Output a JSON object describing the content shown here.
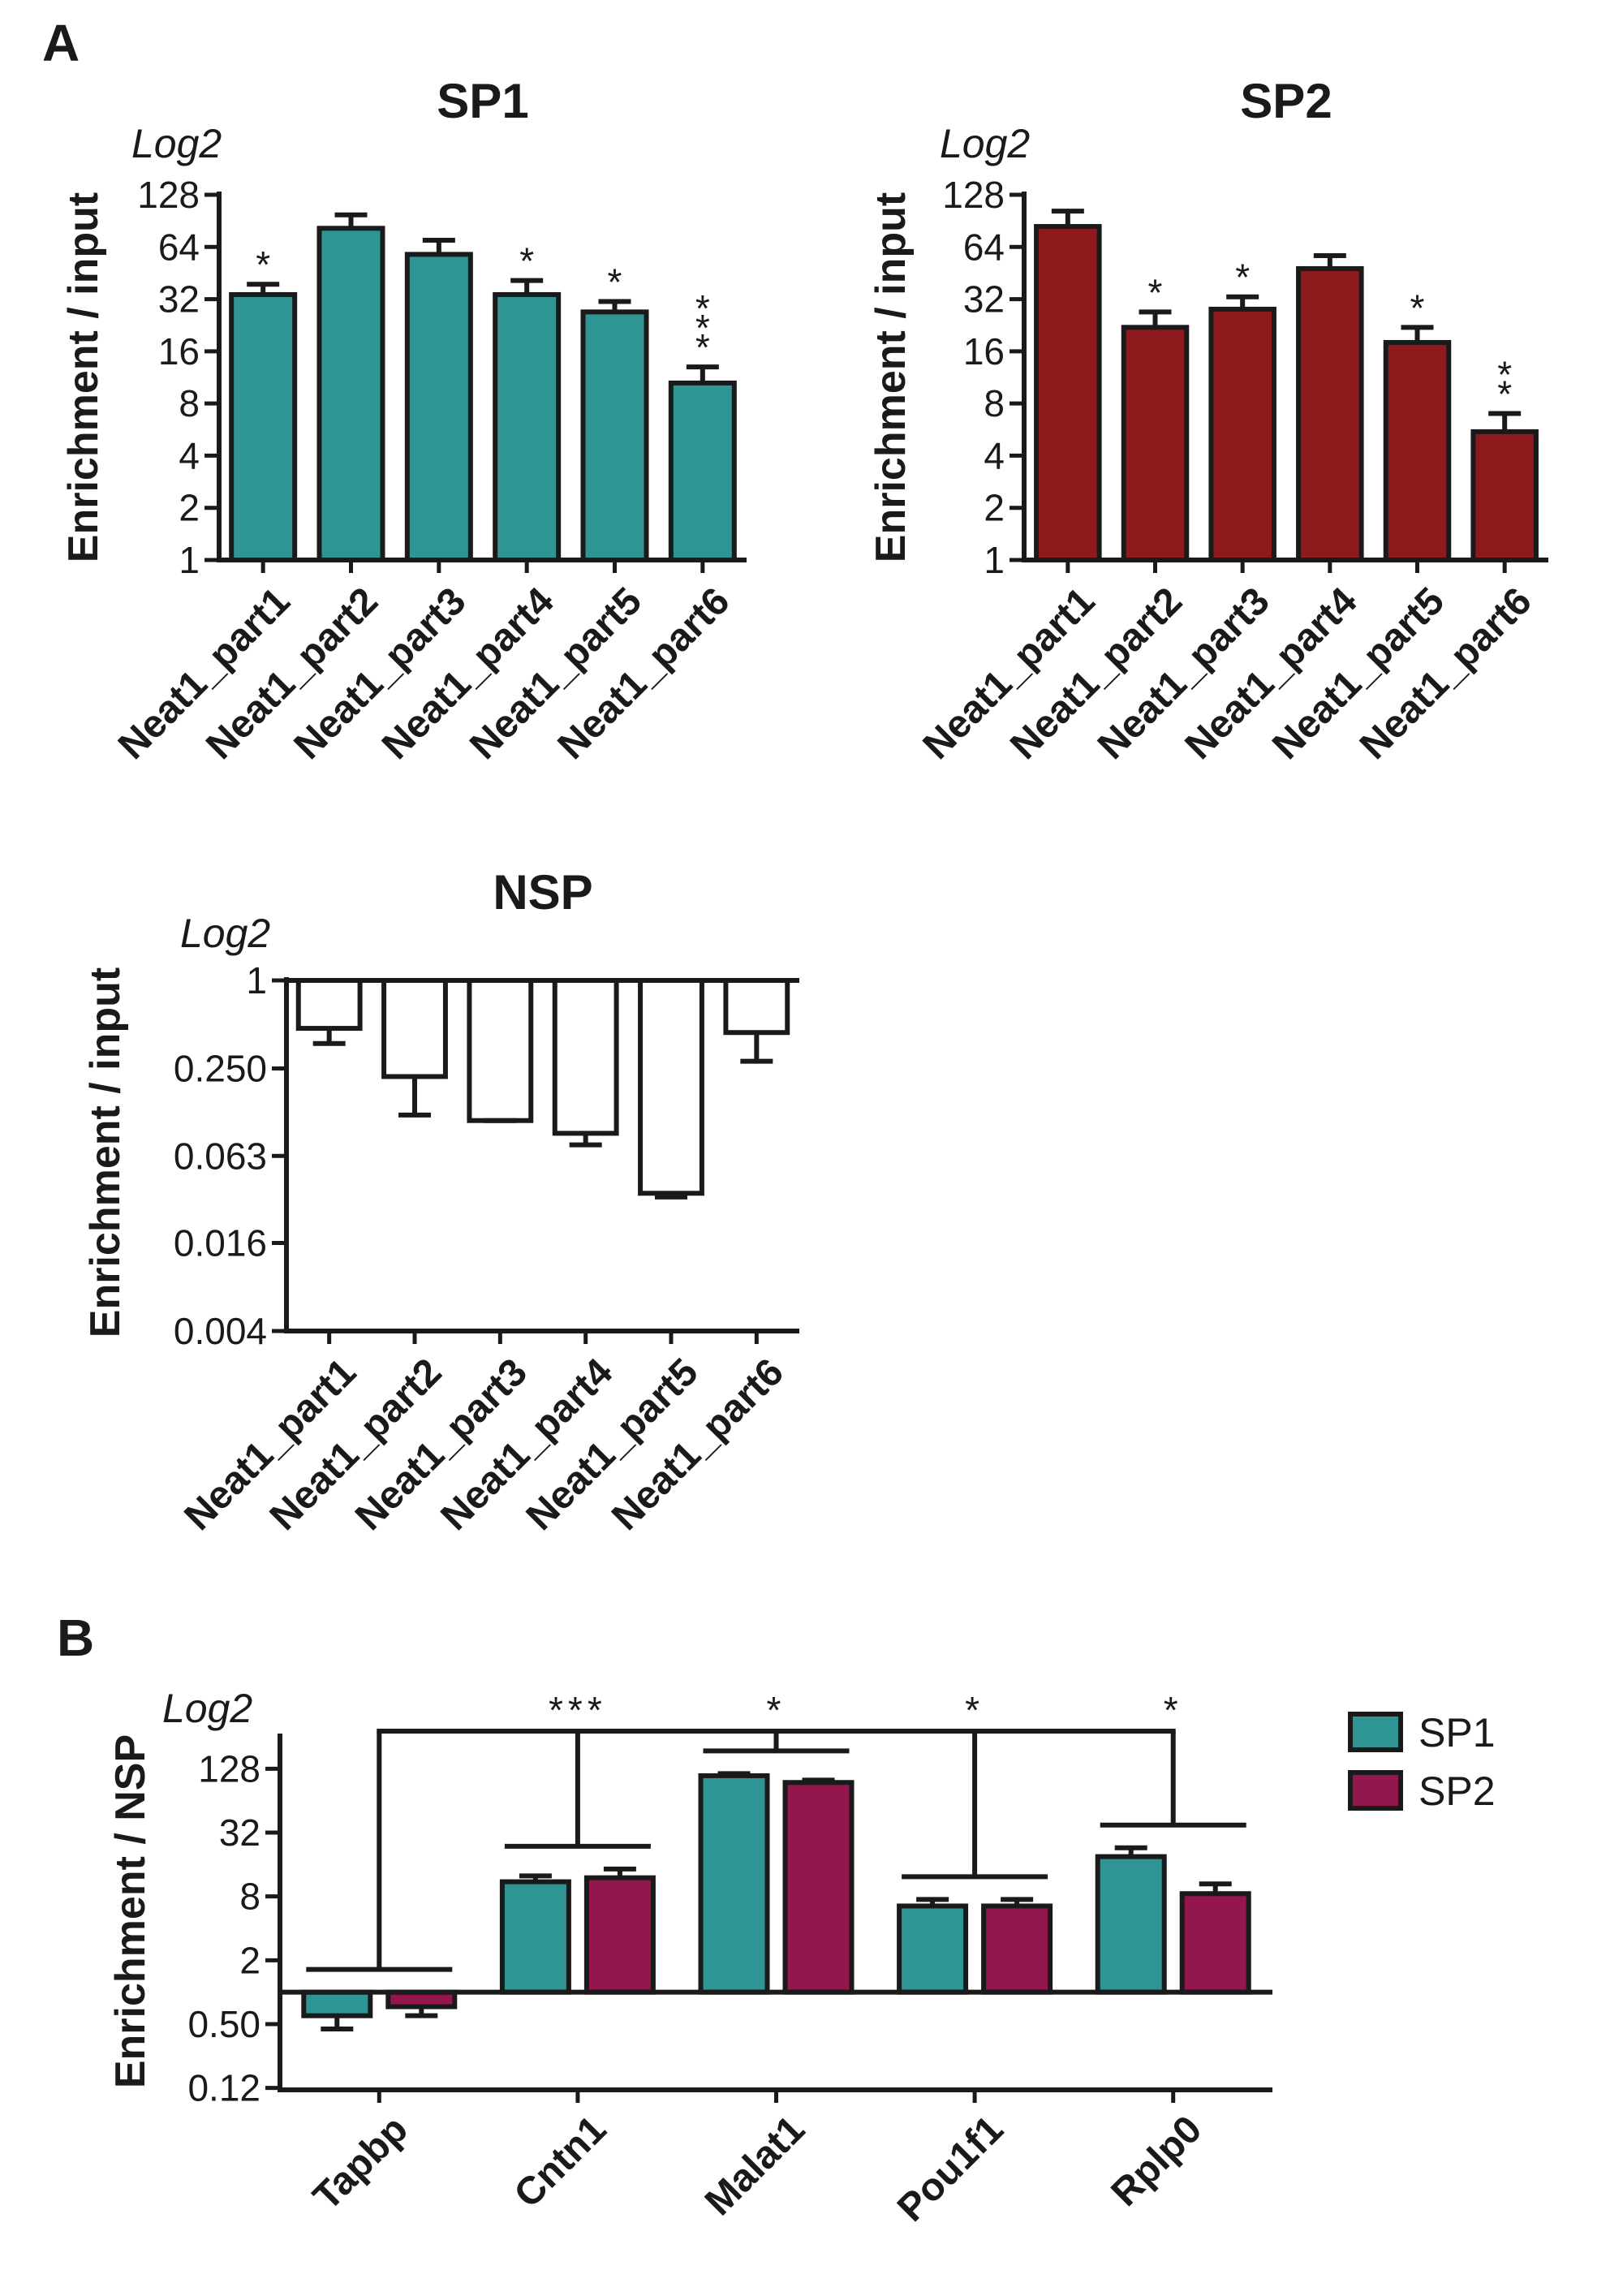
{
  "panel_labels": {
    "a": "A",
    "b": "B"
  },
  "colors": {
    "sp1_teal": "#2e9594",
    "sp2_red": "#8e1a1e",
    "sp2_magenta": "#93164e",
    "nsp": "#ffffff",
    "axis": "#1a1a1a"
  },
  "chart_data": [
    {
      "id": "sp1",
      "type": "bar",
      "title": "SP1",
      "ylabel": "Enrichment / input",
      "scale_label": "Log2",
      "yscale": "log2",
      "ylim": [
        1,
        128
      ],
      "yticks": [
        1,
        2,
        4,
        8,
        16,
        32,
        64,
        128
      ],
      "ytick_labels": [
        "1",
        "2",
        "4",
        "8",
        "16",
        "32",
        "64",
        "128"
      ],
      "categories": [
        "Neat1_part1",
        "Neat1_part2",
        "Neat1_part3",
        "Neat1_part4",
        "Neat1_part5",
        "Neat1_part6"
      ],
      "values": [
        34,
        82,
        58,
        34,
        27,
        10.5
      ],
      "errors_upper": [
        39,
        98,
        70,
        41,
        31,
        13
      ],
      "significance": [
        "*",
        "",
        "",
        "*",
        "*",
        "***"
      ],
      "color": "#2e9594"
    },
    {
      "id": "sp2",
      "type": "bar",
      "title": "SP2",
      "ylabel": "Enrichment / input",
      "scale_label": "Log2",
      "yscale": "log2",
      "ylim": [
        1,
        128
      ],
      "yticks": [
        1,
        2,
        4,
        8,
        16,
        32,
        64,
        128
      ],
      "ytick_labels": [
        "1",
        "2",
        "4",
        "8",
        "16",
        "32",
        "64",
        "128"
      ],
      "categories": [
        "Neat1_part1",
        "Neat1_part2",
        "Neat1_part3",
        "Neat1_part4",
        "Neat1_part5",
        "Neat1_part6"
      ],
      "values": [
        84,
        22,
        28,
        48,
        18,
        5.5
      ],
      "errors_upper": [
        103,
        27,
        33,
        57,
        22,
        7
      ],
      "significance": [
        "",
        "*",
        "*",
        "",
        "*",
        "**"
      ],
      "color": "#8e1a1e"
    },
    {
      "id": "nsp",
      "type": "bar",
      "title": "NSP",
      "ylabel": "Enrichment / input",
      "scale_label": "Log2",
      "yscale": "log2",
      "ylim": [
        0.004,
        1
      ],
      "baseline": 1,
      "yticks": [
        0.004,
        0.016,
        0.063,
        0.25,
        1
      ],
      "ytick_labels": [
        "0.004",
        "0.016",
        "0.063",
        "0.250",
        "1"
      ],
      "categories": [
        "Neat1_part1",
        "Neat1_part2",
        "Neat1_part3",
        "Neat1_part4",
        "Neat1_part5",
        "Neat1_part6"
      ],
      "values": [
        0.47,
        0.22,
        0.11,
        0.09,
        0.035,
        0.44
      ],
      "errors_lower": [
        0.37,
        0.12,
        0.11,
        0.075,
        0.033,
        0.28
      ],
      "color": "#ffffff"
    },
    {
      "id": "b",
      "type": "bar",
      "title": "",
      "ylabel": "Enrichment / NSP",
      "scale_label": "Log2",
      "yscale": "log2",
      "ylim": [
        0.12,
        256
      ],
      "baseline": 1,
      "yticks": [
        0.125,
        0.5,
        2,
        8,
        32,
        128
      ],
      "ytick_labels": [
        "0.12",
        "0.50",
        "2",
        "8",
        "32",
        "128"
      ],
      "categories": [
        "Tapbp",
        "Cntn1",
        "Malat1",
        "Pou1f1",
        "Rplp0"
      ],
      "series": [
        {
          "name": "SP1",
          "color": "#2e9594",
          "values": [
            0.6,
            11,
            110,
            6.5,
            19
          ],
          "errors": [
            0.45,
            12.5,
            115,
            7.5,
            23
          ]
        },
        {
          "name": "SP2",
          "color": "#93164e",
          "values": [
            0.73,
            12,
            95,
            6.5,
            8.5
          ],
          "errors": [
            0.6,
            14.5,
            100,
            7.5,
            10.5
          ]
        }
      ],
      "comparisons": {
        "reference": "Tapbp",
        "targets": [
          "Cntn1",
          "Malat1",
          "Pou1f1",
          "Rplp0"
        ],
        "labels": [
          "***",
          "*",
          "*",
          "*"
        ]
      },
      "legend": [
        "SP1",
        "SP2"
      ]
    }
  ]
}
